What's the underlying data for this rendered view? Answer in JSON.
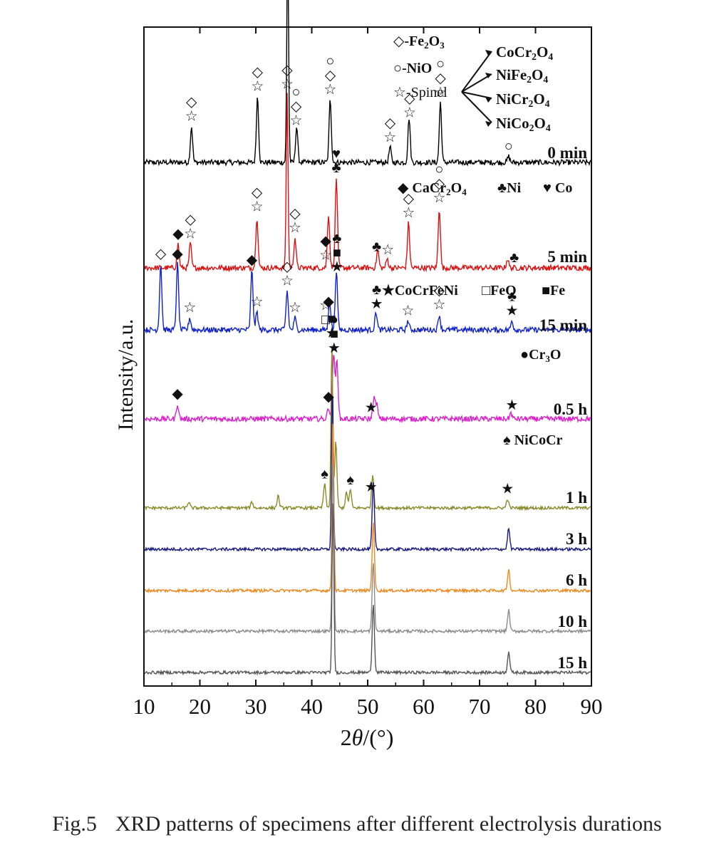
{
  "chart_data": {
    "type": "line",
    "title": "",
    "xlabel_prefix": "2",
    "xlabel_theta": "θ",
    "xlabel_suffix": "/(°)",
    "ylabel": "Intensity/a.u.",
    "xlim": [
      10,
      90
    ],
    "x_ticks": [
      10,
      20,
      30,
      40,
      50,
      60,
      70,
      80,
      90
    ],
    "series": [
      {
        "name": "0 min",
        "color": "#000000",
        "peaks": [
          [
            18.5,
            0.12
          ],
          [
            30.3,
            0.22
          ],
          [
            35.7,
            0.74
          ],
          [
            37.3,
            0.12
          ],
          [
            43.3,
            0.21
          ],
          [
            54.0,
            0.05
          ],
          [
            57.4,
            0.15
          ],
          [
            63.0,
            0.2
          ],
          [
            75.2,
            0.02
          ]
        ]
      },
      {
        "name": "5 min",
        "color": "#dd1111",
        "peaks": [
          [
            16.1,
            0.08
          ],
          [
            18.3,
            0.08
          ],
          [
            30.2,
            0.17
          ],
          [
            35.6,
            0.58
          ],
          [
            37.0,
            0.1
          ],
          [
            43.0,
            0.18
          ],
          [
            44.4,
            0.3
          ],
          [
            51.8,
            0.06
          ],
          [
            53.5,
            0.03
          ],
          [
            57.3,
            0.15
          ],
          [
            62.8,
            0.2
          ],
          [
            75.0,
            0.03
          ]
        ]
      },
      {
        "name": "15 min",
        "color": "#1122cc",
        "peaks": [
          [
            13.0,
            0.22
          ],
          [
            16.0,
            0.22
          ],
          [
            18.2,
            0.04
          ],
          [
            29.3,
            0.2
          ],
          [
            30.2,
            0.06
          ],
          [
            35.6,
            0.13
          ],
          [
            37.0,
            0.04
          ],
          [
            43.2,
            0.1
          ],
          [
            44.4,
            0.2
          ],
          [
            51.5,
            0.06
          ],
          [
            57.2,
            0.03
          ],
          [
            62.8,
            0.05
          ],
          [
            75.8,
            0.03
          ]
        ]
      },
      {
        "name": "0.5 h",
        "color": "#dd22cc",
        "peaks": [
          [
            16.0,
            0.05
          ],
          [
            43.0,
            0.04
          ],
          [
            43.9,
            0.22
          ],
          [
            44.5,
            0.2
          ],
          [
            51.1,
            0.07
          ],
          [
            51.6,
            0.05
          ],
          [
            75.6,
            0.02
          ]
        ]
      },
      {
        "name": "1 h",
        "color": "#8a8a2a",
        "peaks": [
          [
            18.0,
            0.02
          ],
          [
            29.3,
            0.02
          ],
          [
            34.0,
            0.04
          ],
          [
            42.3,
            0.08
          ],
          [
            43.6,
            0.55
          ],
          [
            44.3,
            0.22
          ],
          [
            46.2,
            0.05
          ],
          [
            46.9,
            0.06
          ],
          [
            50.9,
            0.11
          ],
          [
            75.0,
            0.03
          ]
        ]
      },
      {
        "name": "3 h",
        "color": "#1a1a80",
        "peaks": [
          [
            43.7,
            0.55
          ],
          [
            51.0,
            0.22
          ],
          [
            75.2,
            0.07
          ]
        ]
      },
      {
        "name": "6 h",
        "color": "#ee8a22",
        "peaks": [
          [
            43.8,
            0.58
          ],
          [
            51.0,
            0.23
          ],
          [
            75.2,
            0.07
          ]
        ]
      },
      {
        "name": "10 h",
        "color": "#8c8c8c",
        "peaks": [
          [
            43.8,
            0.58
          ],
          [
            51.0,
            0.23
          ],
          [
            75.2,
            0.07
          ]
        ]
      },
      {
        "name": "15 h",
        "color": "#555555",
        "peaks": [
          [
            43.8,
            0.58
          ],
          [
            51.0,
            0.23
          ],
          [
            75.2,
            0.07
          ]
        ]
      }
    ],
    "legend_groups": [
      {
        "items": [
          {
            "symbol": "◇",
            "label": "-Fe",
            "formula": [
              [
                "Fe",
                ""
              ],
              [
                "2",
                "sub"
              ],
              [
                "O",
                ""
              ],
              [
                "3",
                "sub"
              ]
            ]
          }
        ]
      }
    ],
    "legend": {
      "fe2o3": [
        [
          "◇-Fe",
          ""
        ],
        [
          "2",
          "sub"
        ],
        [
          "O",
          ""
        ],
        [
          "3",
          "sub"
        ]
      ],
      "nio": "○-NiO",
      "spinel": "☆-Spinel",
      "spinel_members": [
        [
          [
            "CoCr",
            ""
          ],
          [
            "2",
            "sub"
          ],
          [
            "O",
            ""
          ],
          [
            "4",
            "sub"
          ]
        ],
        [
          [
            "NiFe",
            ""
          ],
          [
            "2",
            "sub"
          ],
          [
            "O",
            ""
          ],
          [
            "4",
            "sub"
          ]
        ],
        [
          [
            "NiCr",
            ""
          ],
          [
            "2",
            "sub"
          ],
          [
            "O",
            ""
          ],
          [
            "4",
            "sub"
          ]
        ],
        [
          [
            "NiCo",
            ""
          ],
          [
            "2",
            "sub"
          ],
          [
            "O",
            ""
          ],
          [
            "4",
            "sub"
          ]
        ]
      ],
      "cacr2o4": [
        [
          "◆ CaCr",
          ""
        ],
        [
          "2",
          "sub"
        ],
        [
          "O",
          ""
        ],
        [
          "4",
          "sub"
        ]
      ],
      "ni": "♣Ni",
      "co": "♥ Co",
      "cocrfeni": "★CoCrFeNi",
      "feo": "□FeO",
      "fe": "■Fe",
      "cr3o": [
        [
          "●Cr",
          ""
        ],
        [
          "3",
          "sub"
        ],
        [
          "O",
          ""
        ]
      ],
      "nicocr": "♠ NiCoCr"
    },
    "markers": [
      {
        "series": "0 min",
        "x": 18.5,
        "symbols": [
          "◇",
          "☆"
        ]
      },
      {
        "series": "0 min",
        "x": 30.3,
        "symbols": [
          "◇",
          "☆"
        ]
      },
      {
        "series": "0 min",
        "x": 35.7,
        "symbols": [
          "◇",
          "☆"
        ]
      },
      {
        "series": "0 min",
        "x": 37.2,
        "symbols": [
          "○",
          "◇",
          "☆"
        ]
      },
      {
        "series": "0 min",
        "x": 43.3,
        "symbols": [
          "○",
          "◇",
          "☆"
        ]
      },
      {
        "series": "0 min",
        "x": 54.0,
        "symbols": [
          "◇",
          "☆"
        ]
      },
      {
        "series": "0 min",
        "x": 57.5,
        "symbols": [
          "◇",
          "☆"
        ]
      },
      {
        "series": "0 min",
        "x": 63.0,
        "symbols": [
          "○",
          "◇",
          "☆"
        ]
      },
      {
        "series": "0 min",
        "x": 75.2,
        "symbols": [
          "○"
        ]
      },
      {
        "series": "5 min",
        "x": 16.1,
        "symbols": [
          "◆"
        ]
      },
      {
        "series": "5 min",
        "x": 18.3,
        "symbols": [
          "◇",
          "☆"
        ]
      },
      {
        "series": "5 min",
        "x": 30.2,
        "symbols": [
          "◇",
          "☆"
        ]
      },
      {
        "series": "5 min",
        "x": 35.6,
        "symbols": [
          "◇",
          "☆"
        ]
      },
      {
        "series": "5 min",
        "x": 37.0,
        "symbols": [
          "◇",
          "☆"
        ]
      },
      {
        "series": "5 min",
        "x": 42.5,
        "symbols": [
          "◆",
          "☆"
        ]
      },
      {
        "series": "5 min",
        "x": 44.4,
        "symbols": [
          "♥",
          "♣"
        ]
      },
      {
        "series": "5 min",
        "x": 51.6,
        "symbols": [
          "♣"
        ]
      },
      {
        "series": "5 min",
        "x": 53.6,
        "symbols": [
          "☆"
        ]
      },
      {
        "series": "5 min",
        "x": 57.3,
        "symbols": [
          "◇",
          "☆"
        ]
      },
      {
        "series": "5 min",
        "x": 62.8,
        "symbols": [
          "○",
          "◇",
          "☆"
        ]
      },
      {
        "series": "5 min",
        "x": 76.2,
        "symbols": [
          "♣"
        ]
      },
      {
        "series": "15 min",
        "x": 13.0,
        "symbols": [
          "◇"
        ]
      },
      {
        "series": "15 min",
        "x": 16.0,
        "symbols": [
          "◆"
        ]
      },
      {
        "series": "15 min",
        "x": 18.2,
        "symbols": [
          "☆"
        ]
      },
      {
        "series": "15 min",
        "x": 29.3,
        "symbols": [
          "◆"
        ]
      },
      {
        "series": "15 min",
        "x": 30.2,
        "symbols": [
          "☆"
        ]
      },
      {
        "series": "15 min",
        "x": 35.6,
        "symbols": [
          "◇",
          "☆"
        ]
      },
      {
        "series": "15 min",
        "x": 37.0,
        "symbols": [
          "☆"
        ]
      },
      {
        "series": "15 min",
        "x": 42.5,
        "symbols": [
          "☆",
          "□"
        ]
      },
      {
        "series": "15 min",
        "x": 43.0,
        "symbols": [
          "◆"
        ]
      },
      {
        "series": "15 min",
        "x": 44.5,
        "symbols": [
          "♣",
          "■",
          "★"
        ]
      },
      {
        "series": "15 min",
        "x": 51.6,
        "symbols": [
          "♣",
          "★"
        ]
      },
      {
        "series": "15 min",
        "x": 57.2,
        "symbols": [
          "☆"
        ]
      },
      {
        "series": "15 min",
        "x": 62.8,
        "symbols": [
          "◇",
          "☆"
        ]
      },
      {
        "series": "15 min",
        "x": 75.8,
        "symbols": [
          "♣",
          "★"
        ]
      },
      {
        "series": "0.5 h",
        "x": 16.0,
        "symbols": [
          "◆"
        ]
      },
      {
        "series": "0.5 h",
        "x": 43.0,
        "symbols": [
          "◆"
        ]
      },
      {
        "series": "0.5 h",
        "x": 44.0,
        "symbols": [
          "●",
          "■",
          "★"
        ]
      },
      {
        "series": "0.5 h",
        "x": 50.6,
        "symbols": [
          "★"
        ]
      },
      {
        "series": "0.5 h",
        "x": 75.8,
        "symbols": [
          "★"
        ]
      },
      {
        "series": "1 h",
        "x": 43.6,
        "symbols": [
          "■",
          "★"
        ]
      },
      {
        "series": "1 h",
        "x": 42.3,
        "symbols": [
          "♠"
        ]
      },
      {
        "series": "1 h",
        "x": 46.9,
        "symbols": [
          "♠"
        ]
      },
      {
        "series": "1 h",
        "x": 50.6,
        "symbols": [
          "★"
        ]
      },
      {
        "series": "1 h",
        "x": 75.0,
        "symbols": [
          "★"
        ]
      }
    ],
    "grid": false
  },
  "caption": {
    "label": "Fig.5",
    "text": "XRD patterns of specimens after different electrolysis durations"
  }
}
